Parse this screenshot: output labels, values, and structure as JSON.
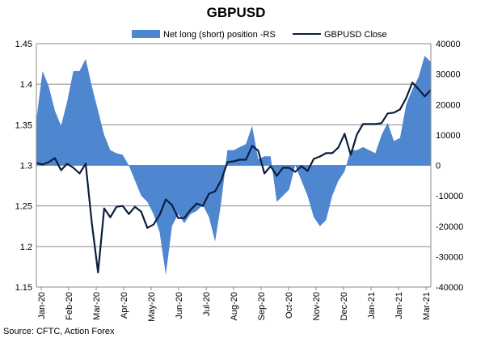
{
  "chart_data": {
    "type": "area+line",
    "title": "GBPUSD",
    "source": "Source: CFTC, Action Forex",
    "colors": {
      "area": "#4f86d0",
      "line": "#0c1e3c",
      "grid": "#8a8a8a"
    },
    "legend": [
      {
        "name": "Net long (short) position -RS",
        "kind": "area-swatch"
      },
      {
        "name": "GBPUSD Close",
        "kind": "line"
      }
    ],
    "legend_position": "top-right",
    "left_axis": {
      "min": 1.15,
      "max": 1.45,
      "ticks": [
        "1.15",
        "1.2",
        "1.25",
        "1.3",
        "1.35",
        "1.4",
        "1.45"
      ]
    },
    "right_axis": {
      "min": -40000,
      "max": 40000,
      "ticks": [
        "-40000",
        "-30000",
        "-20000",
        "-10000",
        "0",
        "10000",
        "20000",
        "30000",
        "40000"
      ]
    },
    "x_labels": [
      "Jan-20",
      "Feb-20",
      "Mar-20",
      "Apr-20",
      "May-20",
      "Jun-20",
      "Jul-20",
      "Aug-20",
      "Sep-20",
      "Oct-20",
      "Nov-20",
      "Dec-20",
      "Jan-21",
      "Jan-21",
      "Mar-21"
    ],
    "series": [
      {
        "name": "Net long (short) position -RS",
        "axis": "right",
        "values": [
          15000,
          31000,
          26000,
          18000,
          13000,
          21000,
          31000,
          31000,
          35000,
          26000,
          18000,
          10000,
          5000,
          4000,
          3500,
          0,
          -5000,
          -10000,
          -12000,
          -16000,
          -22000,
          -36000,
          -20000,
          -16000,
          -19000,
          -16000,
          -15000,
          -13000,
          -17000,
          -25000,
          -12000,
          5000,
          5000,
          6000,
          7000,
          13000,
          2000,
          3000,
          3000,
          -12000,
          -10000,
          -8000,
          0,
          -5000,
          -10000,
          -17000,
          -20000,
          -18000,
          -10000,
          -5000,
          -2000,
          5000,
          5000,
          6000,
          5000,
          4000,
          10000,
          14000,
          8000,
          9000,
          20000,
          25000,
          29000,
          36000,
          34000
        ]
      },
      {
        "name": "GBPUSD Close",
        "axis": "left",
        "values": [
          1.303,
          1.301,
          1.304,
          1.309,
          1.294,
          1.302,
          1.297,
          1.29,
          1.302,
          1.229,
          1.168,
          1.247,
          1.236,
          1.249,
          1.25,
          1.24,
          1.249,
          1.243,
          1.223,
          1.227,
          1.239,
          1.258,
          1.251,
          1.235,
          1.235,
          1.245,
          1.253,
          1.25,
          1.265,
          1.268,
          1.282,
          1.304,
          1.305,
          1.307,
          1.307,
          1.324,
          1.318,
          1.29,
          1.299,
          1.287,
          1.297,
          1.297,
          1.292,
          1.299,
          1.293,
          1.308,
          1.311,
          1.315,
          1.315,
          1.322,
          1.339,
          1.313,
          1.338,
          1.351,
          1.351,
          1.351,
          1.352,
          1.364,
          1.365,
          1.369,
          1.383,
          1.402,
          1.394,
          1.385,
          1.393
        ]
      }
    ]
  }
}
